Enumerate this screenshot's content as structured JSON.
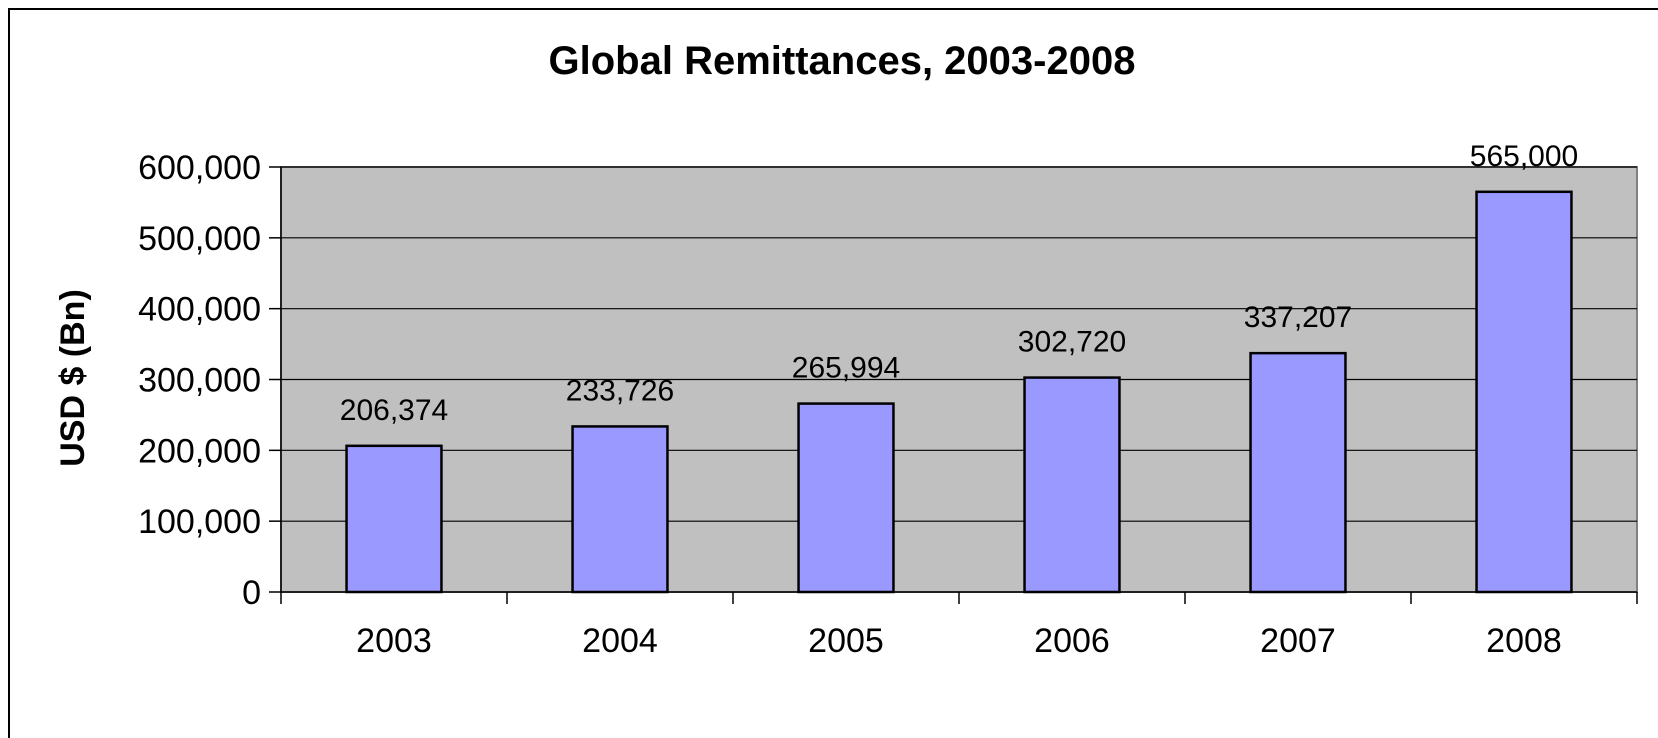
{
  "chart_data": {
    "type": "bar",
    "title": "Global Remittances, 2003-2008",
    "xlabel": "",
    "ylabel": "USD $ (Bn)",
    "categories": [
      "2003",
      "2004",
      "2005",
      "2006",
      "2007",
      "2008"
    ],
    "values": [
      206374,
      233726,
      265994,
      302720,
      337207,
      565000
    ],
    "data_labels": [
      "206,374",
      "233,726",
      "265,994",
      "302,720",
      "337,207",
      "565,000"
    ],
    "ylim": [
      0,
      600000
    ],
    "yticks": [
      0,
      100000,
      200000,
      300000,
      400000,
      500000,
      600000
    ],
    "ytick_labels": [
      "0",
      "100,000",
      "200,000",
      "300,000",
      "400,000",
      "500,000",
      "600,000"
    ],
    "grid": true,
    "legend": "none",
    "colors": {
      "bar_fill": "#9999ff",
      "bar_stroke": "#000000",
      "plot_background": "#c0c0c0",
      "gridline": "#000000",
      "chart_background": "#ffffff",
      "border": "#000000"
    }
  }
}
